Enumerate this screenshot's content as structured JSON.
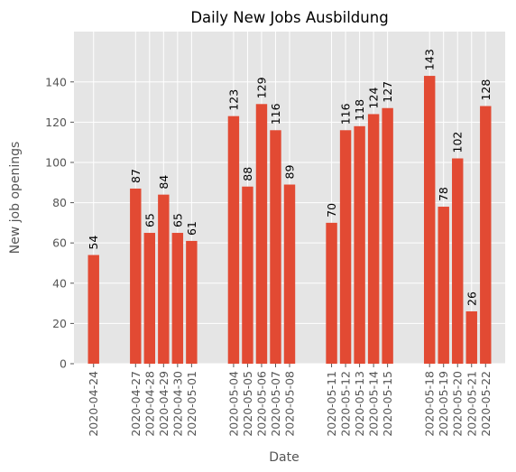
{
  "chart_data": {
    "type": "bar",
    "title": "Daily New Jobs Ausbildung",
    "xlabel": "Date",
    "ylabel": "New job openings",
    "ylim": [
      0,
      165
    ],
    "yticks": [
      0,
      20,
      40,
      60,
      80,
      100,
      120,
      140
    ],
    "grid": true,
    "style": "ggplot",
    "bar_color": "#E24A33",
    "background_color": "#E5E5E5",
    "x_axis_type": "date",
    "categories": [
      "2020-04-24",
      "2020-04-27",
      "2020-04-28",
      "2020-04-29",
      "2020-04-30",
      "2020-05-01",
      "2020-05-04",
      "2020-05-05",
      "2020-05-06",
      "2020-05-07",
      "2020-05-08",
      "2020-05-11",
      "2020-05-12",
      "2020-05-13",
      "2020-05-14",
      "2020-05-15",
      "2020-05-18",
      "2020-05-19",
      "2020-05-20",
      "2020-05-21",
      "2020-05-22"
    ],
    "values": [
      54,
      87,
      65,
      84,
      65,
      61,
      123,
      88,
      129,
      116,
      89,
      70,
      116,
      118,
      124,
      127,
      143,
      78,
      102,
      26,
      128
    ]
  }
}
